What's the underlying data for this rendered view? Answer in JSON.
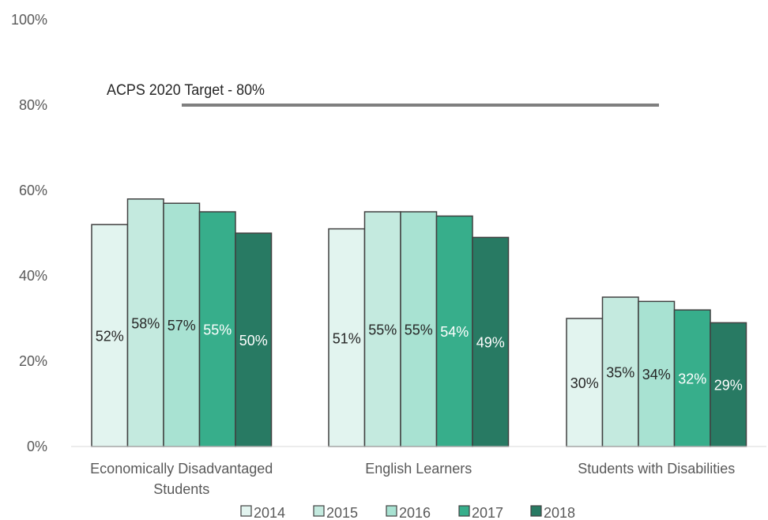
{
  "chart_data": {
    "type": "bar",
    "categories": [
      "Economically Disadvantaged Students",
      "English Learners",
      "Students with Disabilities"
    ],
    "category_label_lines": [
      [
        "Economically Disadvantaged",
        "Students"
      ],
      [
        "English Learners"
      ],
      [
        "Students with Disabilities"
      ]
    ],
    "series": [
      {
        "name": "2014",
        "values": [
          52,
          51,
          30
        ],
        "labels": [
          "52%",
          "51%",
          "30%"
        ],
        "color": "#E2F4EF"
      },
      {
        "name": "2015",
        "values": [
          58,
          55,
          35
        ],
        "labels": [
          "58%",
          "55%",
          "35%"
        ],
        "color": "#C4EADF"
      },
      {
        "name": "2016",
        "values": [
          57,
          55,
          34
        ],
        "labels": [
          "57%",
          "55%",
          "34%"
        ],
        "color": "#A8E2D2"
      },
      {
        "name": "2017",
        "values": [
          55,
          54,
          32
        ],
        "labels": [
          "55%",
          "54%",
          "32%"
        ],
        "color": "#37AE8B"
      },
      {
        "name": "2018",
        "values": [
          50,
          49,
          29
        ],
        "labels": [
          "50%",
          "49%",
          "29%"
        ],
        "color": "#287A63"
      }
    ],
    "ylim": [
      0,
      100
    ],
    "yticks": [
      0,
      20,
      40,
      60,
      80,
      100
    ],
    "ytick_labels": [
      "0%",
      "20%",
      "40%",
      "60%",
      "80%",
      "100%"
    ],
    "grid": false,
    "legend_position": "bottom",
    "target_line": {
      "label": "ACPS 2020 Target - 80%",
      "value": 80,
      "color": "#7F7F7F"
    },
    "bar_outline_color": "#404040",
    "dark_label_color": "#262626",
    "light_label_color": "#FFFFFF"
  }
}
